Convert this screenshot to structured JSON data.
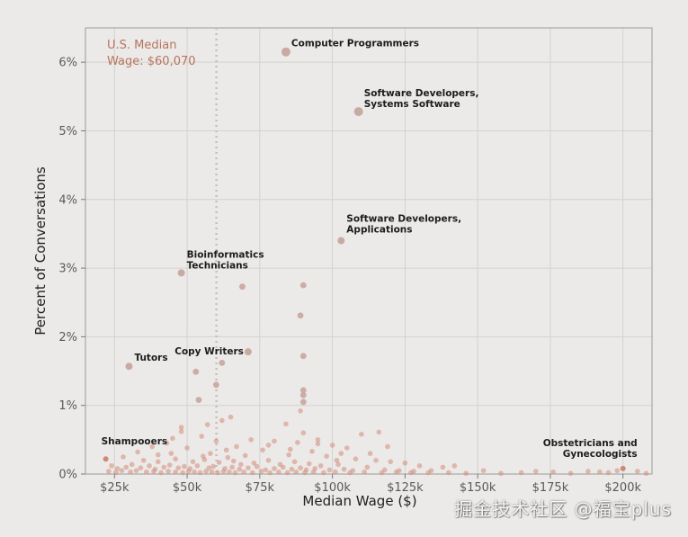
{
  "chart_data": {
    "type": "scatter",
    "xlabel": "Median Wage ($)",
    "ylabel": "Percent of Conversations",
    "xlim": [
      15000,
      210000
    ],
    "ylim": [
      0,
      6.5
    ],
    "x_ticks": [
      {
        "value": 25000,
        "label": "$25k"
      },
      {
        "value": 50000,
        "label": "$50k"
      },
      {
        "value": 75000,
        "label": "$75k"
      },
      {
        "value": 100000,
        "label": "$100k"
      },
      {
        "value": 125000,
        "label": "$125k"
      },
      {
        "value": 150000,
        "label": "$150k"
      },
      {
        "value": 175000,
        "label": "$175k"
      },
      {
        "value": 200000,
        "label": "$200k"
      }
    ],
    "y_ticks": [
      {
        "value": 0,
        "label": "0%"
      },
      {
        "value": 1,
        "label": "1%"
      },
      {
        "value": 2,
        "label": "2%"
      },
      {
        "value": 3,
        "label": "3%"
      },
      {
        "value": 4,
        "label": "4%"
      },
      {
        "value": 5,
        "label": "5%"
      },
      {
        "value": 6,
        "label": "6%"
      }
    ],
    "grid": true,
    "reference_line": {
      "x": 60070,
      "label_line1": "U.S. Median",
      "label_line2": "Wage: $60,070",
      "color": "#b8735e"
    },
    "point_colors": {
      "highlight": "#cc8a76",
      "labeled": "#c9aaa2",
      "cluster": "#d48a78"
    },
    "labeled_points": [
      {
        "x": 84000,
        "y": 6.15,
        "line1": "Computer Programmers",
        "line2": ""
      },
      {
        "x": 109000,
        "y": 5.28,
        "line1": "Software Developers,",
        "line2": "Systems Software"
      },
      {
        "x": 103000,
        "y": 3.4,
        "line1": "Software Developers,",
        "line2": "Applications"
      },
      {
        "x": 48000,
        "y": 2.93,
        "line1": "Bioinformatics",
        "line2": "Technicians"
      },
      {
        "x": 71000,
        "y": 1.78,
        "line1": "Copy Writers",
        "line2": ""
      },
      {
        "x": 30000,
        "y": 1.57,
        "line1": "Tutors",
        "line2": ""
      },
      {
        "x": 22000,
        "y": 0.22,
        "line1": "Shampooers",
        "line2": ""
      },
      {
        "x": 200000,
        "y": 0.08,
        "line1": "Obstetricians and",
        "line2": "Gynecologists"
      }
    ],
    "points": [
      {
        "x": 69000,
        "y": 2.73
      },
      {
        "x": 90000,
        "y": 2.75
      },
      {
        "x": 89000,
        "y": 2.31
      },
      {
        "x": 90000,
        "y": 1.72
      },
      {
        "x": 62000,
        "y": 1.62
      },
      {
        "x": 60000,
        "y": 1.3
      },
      {
        "x": 53000,
        "y": 1.49
      },
      {
        "x": 90000,
        "y": 1.22
      },
      {
        "x": 90000,
        "y": 1.15
      },
      {
        "x": 90000,
        "y": 1.05
      },
      {
        "x": 54000,
        "y": 1.08
      },
      {
        "x": 89000,
        "y": 0.92
      },
      {
        "x": 65000,
        "y": 0.83
      },
      {
        "x": 62000,
        "y": 0.78
      },
      {
        "x": 57000,
        "y": 0.72
      },
      {
        "x": 84000,
        "y": 0.73
      },
      {
        "x": 48000,
        "y": 0.68
      },
      {
        "x": 90000,
        "y": 0.6
      },
      {
        "x": 48000,
        "y": 0.62
      },
      {
        "x": 110000,
        "y": 0.58
      },
      {
        "x": 116000,
        "y": 0.61
      },
      {
        "x": 55000,
        "y": 0.55
      },
      {
        "x": 45000,
        "y": 0.52
      },
      {
        "x": 43000,
        "y": 0.45
      },
      {
        "x": 60000,
        "y": 0.48
      },
      {
        "x": 72000,
        "y": 0.5
      },
      {
        "x": 80000,
        "y": 0.48
      },
      {
        "x": 88000,
        "y": 0.46
      },
      {
        "x": 95000,
        "y": 0.44
      },
      {
        "x": 100000,
        "y": 0.42
      },
      {
        "x": 105000,
        "y": 0.38
      },
      {
        "x": 38000,
        "y": 0.4
      },
      {
        "x": 33000,
        "y": 0.32
      },
      {
        "x": 50000,
        "y": 0.38
      },
      {
        "x": 67000,
        "y": 0.4
      },
      {
        "x": 76000,
        "y": 0.35
      },
      {
        "x": 93000,
        "y": 0.33
      },
      {
        "x": 85000,
        "y": 0.28
      },
      {
        "x": 58000,
        "y": 0.3
      },
      {
        "x": 40000,
        "y": 0.28
      },
      {
        "x": 28000,
        "y": 0.25
      },
      {
        "x": 64000,
        "y": 0.24
      },
      {
        "x": 70000,
        "y": 0.27
      },
      {
        "x": 98000,
        "y": 0.26
      },
      {
        "x": 108000,
        "y": 0.22
      },
      {
        "x": 115000,
        "y": 0.2
      },
      {
        "x": 120000,
        "y": 0.18
      },
      {
        "x": 125000,
        "y": 0.16
      },
      {
        "x": 130000,
        "y": 0.12
      },
      {
        "x": 138000,
        "y": 0.1
      },
      {
        "x": 142000,
        "y": 0.12
      },
      {
        "x": 152000,
        "y": 0.05
      },
      {
        "x": 170000,
        "y": 0.04
      },
      {
        "x": 176000,
        "y": 0.03
      },
      {
        "x": 188000,
        "y": 0.04
      },
      {
        "x": 192000,
        "y": 0.03
      },
      {
        "x": 198000,
        "y": 0.05
      },
      {
        "x": 205000,
        "y": 0.04
      },
      {
        "x": 35000,
        "y": 0.2
      },
      {
        "x": 46000,
        "y": 0.22
      },
      {
        "x": 52000,
        "y": 0.18
      },
      {
        "x": 56000,
        "y": 0.21
      },
      {
        "x": 61000,
        "y": 0.17
      },
      {
        "x": 66000,
        "y": 0.19
      },
      {
        "x": 73000,
        "y": 0.16
      },
      {
        "x": 78000,
        "y": 0.2
      },
      {
        "x": 82000,
        "y": 0.14
      },
      {
        "x": 87000,
        "y": 0.18
      },
      {
        "x": 92000,
        "y": 0.15
      },
      {
        "x": 96000,
        "y": 0.12
      },
      {
        "x": 102000,
        "y": 0.14
      },
      {
        "x": 112000,
        "y": 0.1
      },
      {
        "x": 24000,
        "y": 0.12
      },
      {
        "x": 26000,
        "y": 0.08
      },
      {
        "x": 29000,
        "y": 0.1
      },
      {
        "x": 31000,
        "y": 0.14
      },
      {
        "x": 34000,
        "y": 0.09
      },
      {
        "x": 37000,
        "y": 0.12
      },
      {
        "x": 39000,
        "y": 0.07
      },
      {
        "x": 42000,
        "y": 0.1
      },
      {
        "x": 44000,
        "y": 0.13
      },
      {
        "x": 47000,
        "y": 0.09
      },
      {
        "x": 49000,
        "y": 0.11
      },
      {
        "x": 51000,
        "y": 0.08
      },
      {
        "x": 53500,
        "y": 0.12
      },
      {
        "x": 57500,
        "y": 0.09
      },
      {
        "x": 59000,
        "y": 0.11
      },
      {
        "x": 63000,
        "y": 0.08
      },
      {
        "x": 65500,
        "y": 0.1
      },
      {
        "x": 68000,
        "y": 0.07
      },
      {
        "x": 71000,
        "y": 0.09
      },
      {
        "x": 74000,
        "y": 0.11
      },
      {
        "x": 77000,
        "y": 0.06
      },
      {
        "x": 80000,
        "y": 0.08
      },
      {
        "x": 83000,
        "y": 0.1
      },
      {
        "x": 86000,
        "y": 0.07
      },
      {
        "x": 89000,
        "y": 0.09
      },
      {
        "x": 91000,
        "y": 0.06
      },
      {
        "x": 94000,
        "y": 0.08
      },
      {
        "x": 99000,
        "y": 0.06
      },
      {
        "x": 104000,
        "y": 0.07
      },
      {
        "x": 107000,
        "y": 0.05
      },
      {
        "x": 118000,
        "y": 0.06
      },
      {
        "x": 123000,
        "y": 0.05
      },
      {
        "x": 128000,
        "y": 0.04
      },
      {
        "x": 134000,
        "y": 0.05
      },
      {
        "x": 23000,
        "y": 0.04
      },
      {
        "x": 25500,
        "y": 0.02
      },
      {
        "x": 27500,
        "y": 0.05
      },
      {
        "x": 30500,
        "y": 0.03
      },
      {
        "x": 32500,
        "y": 0.05
      },
      {
        "x": 36000,
        "y": 0.03
      },
      {
        "x": 38500,
        "y": 0.04
      },
      {
        "x": 41000,
        "y": 0.02
      },
      {
        "x": 43500,
        "y": 0.04
      },
      {
        "x": 46000,
        "y": 0.03
      },
      {
        "x": 48500,
        "y": 0.02
      },
      {
        "x": 50500,
        "y": 0.04
      },
      {
        "x": 52500,
        "y": 0.03
      },
      {
        "x": 54500,
        "y": 0.02
      },
      {
        "x": 56500,
        "y": 0.04
      },
      {
        "x": 58500,
        "y": 0.03
      },
      {
        "x": 60500,
        "y": 0.02
      },
      {
        "x": 62500,
        "y": 0.04
      },
      {
        "x": 64500,
        "y": 0.03
      },
      {
        "x": 66500,
        "y": 0.02
      },
      {
        "x": 69500,
        "y": 0.03
      },
      {
        "x": 72500,
        "y": 0.02
      },
      {
        "x": 75500,
        "y": 0.04
      },
      {
        "x": 78500,
        "y": 0.02
      },
      {
        "x": 81500,
        "y": 0.03
      },
      {
        "x": 84500,
        "y": 0.02
      },
      {
        "x": 87500,
        "y": 0.03
      },
      {
        "x": 90500,
        "y": 0.02
      },
      {
        "x": 93500,
        "y": 0.03
      },
      {
        "x": 97000,
        "y": 0.02
      },
      {
        "x": 101000,
        "y": 0.03
      },
      {
        "x": 106000,
        "y": 0.02
      },
      {
        "x": 111000,
        "y": 0.03
      },
      {
        "x": 117000,
        "y": 0.02
      },
      {
        "x": 122000,
        "y": 0.03
      },
      {
        "x": 127000,
        "y": 0.02
      },
      {
        "x": 133000,
        "y": 0.02
      },
      {
        "x": 140000,
        "y": 0.02
      },
      {
        "x": 146000,
        "y": 0.01
      },
      {
        "x": 158000,
        "y": 0.01
      },
      {
        "x": 165000,
        "y": 0.02
      },
      {
        "x": 182000,
        "y": 0.01
      },
      {
        "x": 195000,
        "y": 0.02
      },
      {
        "x": 208000,
        "y": 0.01
      },
      {
        "x": 40000,
        "y": 0.18
      },
      {
        "x": 44500,
        "y": 0.3
      },
      {
        "x": 63500,
        "y": 0.35
      },
      {
        "x": 78000,
        "y": 0.42
      },
      {
        "x": 95000,
        "y": 0.5
      },
      {
        "x": 103000,
        "y": 0.3
      },
      {
        "x": 55500,
        "y": 0.26
      },
      {
        "x": 68500,
        "y": 0.14
      },
      {
        "x": 85500,
        "y": 0.36
      },
      {
        "x": 101500,
        "y": 0.2
      },
      {
        "x": 113000,
        "y": 0.3
      },
      {
        "x": 119000,
        "y": 0.4
      }
    ]
  },
  "watermark": "掘金技术社区 @福宝plus"
}
